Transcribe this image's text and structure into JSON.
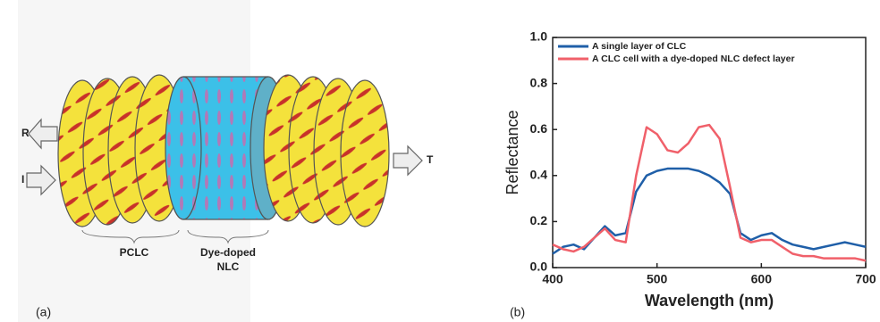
{
  "panels": {
    "a": "(a)",
    "b": "(b)"
  },
  "diagram": {
    "reflected": "R",
    "incident": "I",
    "transmitted": "T",
    "left_label": "PCLC",
    "middle_label": [
      "Dye-doped",
      "NLC"
    ]
  },
  "chart_data": {
    "type": "line",
    "x_label": "Wavelength (nm)",
    "y_label": "Reflectance",
    "x": [
      400,
      410,
      420,
      430,
      440,
      450,
      460,
      470,
      480,
      490,
      500,
      510,
      520,
      530,
      540,
      550,
      560,
      570,
      580,
      590,
      600,
      610,
      620,
      630,
      640,
      650,
      660,
      670,
      680,
      690,
      700
    ],
    "series": [
      {
        "name": "A single layer of CLC",
        "color": "#1f5fa8",
        "values": [
          0.06,
          0.09,
          0.1,
          0.08,
          0.13,
          0.18,
          0.14,
          0.15,
          0.33,
          0.4,
          0.42,
          0.43,
          0.43,
          0.43,
          0.42,
          0.4,
          0.37,
          0.32,
          0.15,
          0.12,
          0.14,
          0.15,
          0.12,
          0.1,
          0.09,
          0.08,
          0.09,
          0.1,
          0.11,
          0.1,
          0.09
        ]
      },
      {
        "name": "A CLC cell with a dye-doped NLC defect layer",
        "color": "#f0606a",
        "values": [
          0.1,
          0.08,
          0.07,
          0.09,
          0.13,
          0.17,
          0.12,
          0.11,
          0.4,
          0.61,
          0.58,
          0.51,
          0.5,
          0.54,
          0.61,
          0.62,
          0.56,
          0.35,
          0.13,
          0.11,
          0.12,
          0.12,
          0.09,
          0.06,
          0.05,
          0.05,
          0.04,
          0.04,
          0.04,
          0.04,
          0.03
        ]
      }
    ],
    "xlim": [
      400,
      700
    ],
    "xticks": [
      400,
      500,
      600,
      700
    ],
    "ylim": [
      0,
      1
    ],
    "yticks": [
      {
        "value": 0,
        "label": "0.0"
      },
      0.2,
      0.4,
      0.6,
      0.8,
      {
        "value": 1,
        "label": "1.0"
      }
    ],
    "legend": "upper left"
  }
}
